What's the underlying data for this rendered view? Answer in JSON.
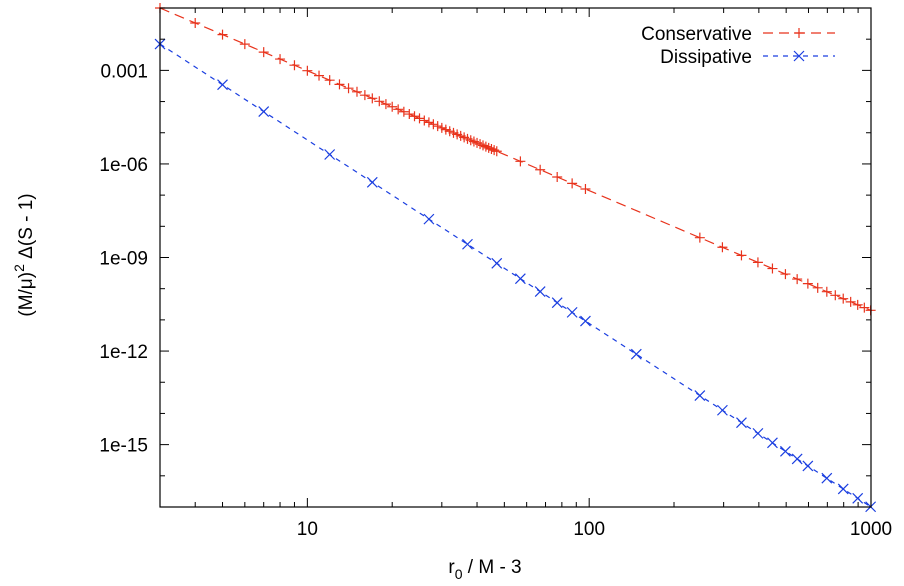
{
  "chart_data": {
    "type": "line",
    "xscale": "log",
    "yscale": "log",
    "xlim": [
      3,
      1000
    ],
    "ylim": [
      1e-17,
      0.1
    ],
    "grid": false,
    "legend_position": "top-right",
    "xlabel_main": "r",
    "xlabel_sub": "0",
    "xlabel_rest": " / M - 3",
    "ylabel_main": "(M/μ)",
    "ylabel_sup": "2",
    "ylabel_rest": " Δ(S - 1)",
    "x_ticks": [
      {
        "value": 10,
        "label": "10"
      },
      {
        "value": 100,
        "label": "100"
      },
      {
        "value": 1000,
        "label": "1000"
      }
    ],
    "y_ticks": [
      {
        "value": 0.001,
        "label": "0.001"
      },
      {
        "value": 1e-06,
        "label": "1e-06"
      },
      {
        "value": 1e-09,
        "label": "1e-09"
      },
      {
        "value": 1e-12,
        "label": "1e-12"
      },
      {
        "value": 1e-15,
        "label": "1e-15"
      }
    ],
    "series": [
      {
        "name": "Conservative",
        "color": "#e8331c",
        "marker": "plus",
        "dash": "long",
        "line_start": [
          3,
          0.1
        ],
        "line_end": [
          1000,
          2e-11
        ],
        "points_x": [
          3,
          4,
          5,
          6,
          7,
          8,
          9,
          10,
          11,
          12,
          13,
          14,
          15,
          16,
          17,
          18,
          19,
          20,
          21,
          22,
          23,
          24,
          25,
          26,
          27,
          28,
          29,
          30,
          31,
          32,
          33,
          34,
          35,
          36,
          37,
          38,
          39,
          40,
          41,
          42,
          43,
          44,
          45,
          46,
          47,
          57,
          67,
          77,
          87,
          97,
          247,
          297,
          347,
          397,
          447,
          497,
          547,
          597,
          647,
          697,
          747,
          797,
          847,
          897,
          947,
          997
        ]
      },
      {
        "name": "Dissipative",
        "color": "#1a3ee0",
        "marker": "cross",
        "dash": "short",
        "line_start": [
          3,
          0.007
        ],
        "line_end": [
          1000,
          1e-17
        ],
        "points_x": [
          3,
          5,
          7,
          12,
          17,
          27,
          37,
          47,
          57,
          67,
          77,
          87,
          97,
          147,
          247,
          297,
          347,
          397,
          447,
          497,
          547,
          597,
          697,
          797,
          897,
          997
        ]
      }
    ]
  }
}
